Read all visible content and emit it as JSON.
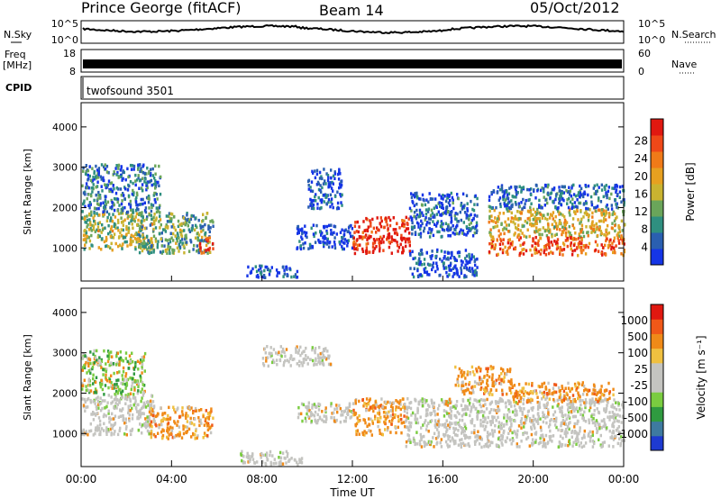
{
  "header": {
    "station": "Prince George (fitACF)",
    "beam": "Beam 14",
    "date": "05/Oct/2012"
  },
  "side_labels": {
    "nsky": "N.Sky",
    "freq_top": "Freq",
    "freq_unit": "[MHz]",
    "cpid": "CPID",
    "nsearch": "N.Search",
    "nave": "Nave"
  },
  "mini_ticks": {
    "nsky_top": "10^5",
    "nsky_bottom": "10^0",
    "freq_top": "18",
    "freq_bottom": "8",
    "nave_top": "60",
    "nave_bottom": "0"
  },
  "cpid_label": "twofsound 3501",
  "chart_data": [
    {
      "type": "heatmap",
      "name": "power",
      "ylabel": "Slant Range [km]",
      "ylim": [
        180,
        4600
      ],
      "yticks": [
        "1000",
        "2000",
        "3000",
        "4000"
      ],
      "xlim": [
        0,
        24
      ],
      "colorbar_label": "Power [dB]",
      "colorbar_ticks": [
        "4",
        "8",
        "12",
        "16",
        "20",
        "24",
        "28"
      ],
      "colorbar_colors": [
        "#1535e6",
        "#2a5fb0",
        "#2f8f80",
        "#6aa55a",
        "#c9b330",
        "#e6a020",
        "#f07a18",
        "#ef4818",
        "#e01810"
      ],
      "regions": [
        {
          "t": [
            0.0,
            3.2
          ],
          "r": [
            950,
            1900
          ],
          "level": 0.45
        },
        {
          "t": [
            0.0,
            3.5
          ],
          "r": [
            1900,
            3100
          ],
          "level": 0.2
        },
        {
          "t": [
            2.5,
            5.8
          ],
          "r": [
            900,
            1900
          ],
          "level": 0.35
        },
        {
          "t": [
            5.2,
            5.8
          ],
          "r": [
            900,
            1300
          ],
          "level": 0.85
        },
        {
          "t": [
            7.3,
            9.6
          ],
          "r": [
            300,
            600
          ],
          "level": 0.1
        },
        {
          "t": [
            9.5,
            12.0
          ],
          "r": [
            1000,
            1600
          ],
          "level": 0.05
        },
        {
          "t": [
            10.0,
            11.5
          ],
          "r": [
            2000,
            3000
          ],
          "level": 0.1
        },
        {
          "t": [
            12.0,
            14.5
          ],
          "r": [
            900,
            1800
          ],
          "level": 0.95
        },
        {
          "t": [
            14.5,
            17.5
          ],
          "r": [
            1300,
            2400
          ],
          "level": 0.15
        },
        {
          "t": [
            14.5,
            17.5
          ],
          "r": [
            300,
            1000
          ],
          "level": 0.1
        },
        {
          "t": [
            18.0,
            24.0
          ],
          "r": [
            1300,
            2000
          ],
          "level": 0.55
        },
        {
          "t": [
            18.0,
            24.0
          ],
          "r": [
            850,
            1300
          ],
          "level": 0.8
        },
        {
          "t": [
            18.0,
            24.0
          ],
          "r": [
            2000,
            2600
          ],
          "level": 0.15
        }
      ]
    },
    {
      "type": "heatmap",
      "name": "velocity",
      "ylabel": "Slant Range [km]",
      "ylim": [
        180,
        4600
      ],
      "yticks": [
        "1000",
        "2000",
        "3000",
        "4000"
      ],
      "xlim": [
        0,
        24
      ],
      "xticks": [
        "00:00",
        "04:00",
        "08:00",
        "12:00",
        "16:00",
        "20:00",
        "00:00"
      ],
      "xlabel": "Time UT",
      "colorbar_label": "Velocity [m s⁻¹]",
      "colorbar_ticks": [
        "1000",
        "500",
        "100",
        "25",
        "-25",
        "-100",
        "-500",
        "-1000"
      ],
      "colorbar_colors": [
        "#1e3ad0",
        "#3e7aa0",
        "#2f9a40",
        "#7acc40",
        "#c4c4c0",
        "#c4c4c0",
        "#f0c040",
        "#f08a18",
        "#f05818",
        "#e01810"
      ],
      "regions": [
        {
          "t": [
            0.0,
            3.2
          ],
          "r": [
            1000,
            2000
          ],
          "kind": "gray"
        },
        {
          "t": [
            0.0,
            2.8
          ],
          "r": [
            2000,
            3100
          ],
          "kind": "mixed"
        },
        {
          "t": [
            3.0,
            5.8
          ],
          "r": [
            900,
            1700
          ],
          "kind": "orange"
        },
        {
          "t": [
            7.0,
            9.8
          ],
          "r": [
            250,
            600
          ],
          "kind": "gray"
        },
        {
          "t": [
            9.5,
            12.0
          ],
          "r": [
            1300,
            1800
          ],
          "kind": "gray"
        },
        {
          "t": [
            12.0,
            14.3
          ],
          "r": [
            1000,
            1900
          ],
          "kind": "orange"
        },
        {
          "t": [
            14.3,
            24.0
          ],
          "r": [
            700,
            1900
          ],
          "kind": "gray"
        },
        {
          "t": [
            16.5,
            19.0
          ],
          "r": [
            2000,
            2700
          ],
          "kind": "orange"
        },
        {
          "t": [
            19.0,
            23.5
          ],
          "r": [
            1800,
            2300
          ],
          "kind": "orange"
        },
        {
          "t": [
            8.0,
            11.0
          ],
          "r": [
            2700,
            3200
          ],
          "kind": "gray"
        }
      ]
    }
  ],
  "colors": {
    "axis": "#000000",
    "background": "#ffffff"
  }
}
